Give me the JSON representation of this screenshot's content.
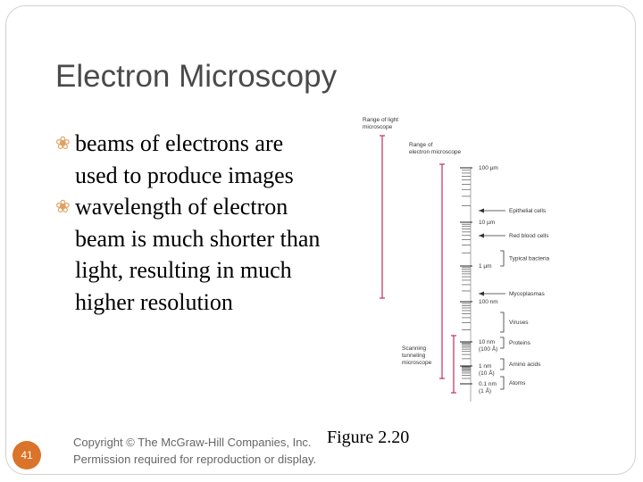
{
  "slide": {
    "title": "Electron Microscopy",
    "bullets": [
      {
        "text": "beams of electrons are used to produce images"
      },
      {
        "text": "wavelength of electron beam is much shorter than light, resulting in much higher resolution"
      }
    ],
    "caption": "Figure 2.20",
    "copyright_line1": "Copyright © The McGraw-Hill Companies, Inc.",
    "copyright_line2": "Permission required for reproduction or display.",
    "page_number": "41",
    "colors": {
      "accent": "#d9742a",
      "bar": "#c0305a"
    }
  },
  "figure": {
    "light_range_label": [
      "Range of light",
      "microscope"
    ],
    "electron_range_label": [
      "Range of",
      "electron microscope"
    ],
    "stm_label": [
      "Scanning",
      "tunneling",
      "microscope"
    ],
    "scale_labels": [
      {
        "lines": [
          "100 µm"
        ]
      },
      {
        "lines": [
          "10 µm"
        ]
      },
      {
        "lines": [
          "1 µm"
        ]
      },
      {
        "lines": [
          "100 nm"
        ]
      },
      {
        "lines": [
          "10 nm",
          "(100 Å)"
        ]
      },
      {
        "lines": [
          "1 nm",
          "(10 Å)"
        ]
      },
      {
        "lines": [
          "0.1 nm",
          "(1 Å)"
        ]
      }
    ],
    "objects": [
      {
        "label": "Epithelial cells",
        "kind": "arrow"
      },
      {
        "label": "Red blood cells",
        "kind": "arrow"
      },
      {
        "label": "Typical bacteria",
        "kind": "bracket"
      },
      {
        "label": "Mycoplasmas",
        "kind": "arrow"
      },
      {
        "label": "Viruses",
        "kind": "bracket"
      },
      {
        "label": "Proteins",
        "kind": "bracket"
      },
      {
        "label": "Amino acids",
        "kind": "bracket"
      },
      {
        "label": "Atoms",
        "kind": "bracket"
      }
    ]
  }
}
